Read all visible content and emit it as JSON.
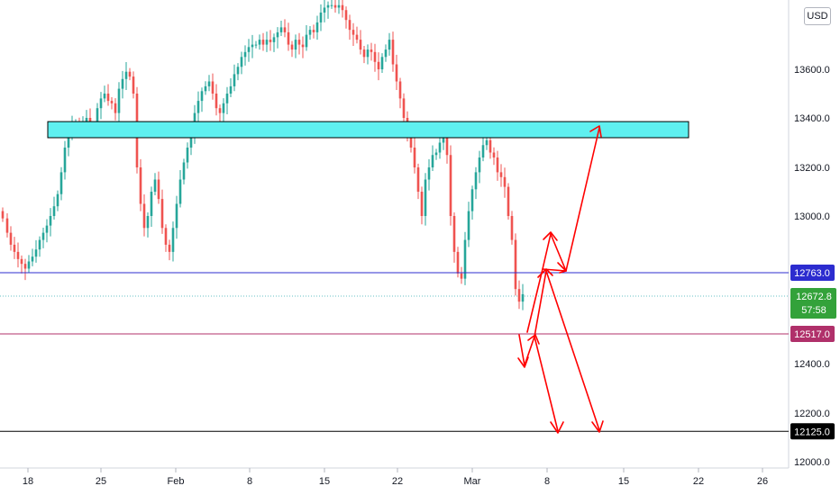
{
  "currency_label": "USD",
  "chart_data": {
    "type": "candlestick",
    "y_axis": {
      "ticks": [
        "12000.0",
        "12200.0",
        "12400.0",
        "13000.0",
        "13200.0",
        "13400.0",
        "13600.0"
      ],
      "range": [
        11980,
        13870
      ]
    },
    "x_axis": {
      "ticks": [
        "18",
        "25",
        "Feb",
        "8",
        "15",
        "22",
        "Mar",
        "8",
        "15",
        "22",
        "26"
      ]
    },
    "levels": [
      {
        "label": "12763.0",
        "value": 12763.0,
        "color": "#2c2ccf"
      },
      {
        "label": "12517.0",
        "value": 12517.0,
        "color": "#b0306a"
      },
      {
        "label": "12125.0",
        "value": 12125.0,
        "color": "#000000"
      }
    ],
    "current_price": {
      "label": "12672.8",
      "countdown": "57:58",
      "value": 12672.8,
      "color": "#33a23a"
    },
    "zone": {
      "from": 13320,
      "to": 13385,
      "color": "#5ff0f0"
    },
    "arrow_color": "#ff0000",
    "up_color": "#26a69a",
    "down_color": "#ef5350",
    "path": [
      [
        0,
        13020
      ],
      [
        6,
        12990
      ],
      [
        10,
        12930
      ],
      [
        14,
        12880
      ],
      [
        18,
        12850
      ],
      [
        22,
        12820
      ],
      [
        26,
        12800
      ],
      [
        30,
        12780
      ],
      [
        34,
        12810
      ],
      [
        38,
        12830
      ],
      [
        42,
        12860
      ],
      [
        46,
        12900
      ],
      [
        50,
        12930
      ],
      [
        54,
        12960
      ],
      [
        58,
        13000
      ],
      [
        62,
        13040
      ],
      [
        66,
        13090
      ],
      [
        70,
        13180
      ],
      [
        74,
        13280
      ],
      [
        78,
        13350
      ],
      [
        82,
        13370
      ],
      [
        86,
        13380
      ],
      [
        90,
        13360
      ],
      [
        94,
        13380
      ],
      [
        98,
        13400
      ],
      [
        102,
        13370
      ],
      [
        106,
        13360
      ],
      [
        110,
        13440
      ],
      [
        114,
        13480
      ],
      [
        118,
        13500
      ],
      [
        122,
        13470
      ],
      [
        126,
        13460
      ],
      [
        130,
        13420
      ],
      [
        134,
        13520
      ],
      [
        138,
        13560
      ],
      [
        142,
        13590
      ],
      [
        146,
        13570
      ],
      [
        150,
        13500
      ],
      [
        154,
        13200
      ],
      [
        158,
        13050
      ],
      [
        162,
        12950
      ],
      [
        166,
        13000
      ],
      [
        170,
        13100
      ],
      [
        174,
        13150
      ],
      [
        178,
        13070
      ],
      [
        182,
        12950
      ],
      [
        186,
        12880
      ],
      [
        190,
        12850
      ],
      [
        194,
        12950
      ],
      [
        198,
        13050
      ],
      [
        202,
        13150
      ],
      [
        206,
        13220
      ],
      [
        210,
        13280
      ],
      [
        214,
        13330
      ],
      [
        218,
        13420
      ],
      [
        222,
        13470
      ],
      [
        226,
        13510
      ],
      [
        230,
        13530
      ],
      [
        234,
        13550
      ],
      [
        238,
        13500
      ],
      [
        242,
        13440
      ],
      [
        246,
        13420
      ],
      [
        250,
        13460
      ],
      [
        254,
        13500
      ],
      [
        258,
        13530
      ],
      [
        262,
        13580
      ],
      [
        266,
        13610
      ],
      [
        270,
        13650
      ],
      [
        274,
        13670
      ],
      [
        278,
        13690
      ],
      [
        282,
        13700
      ],
      [
        286,
        13700
      ],
      [
        290,
        13720
      ],
      [
        294,
        13700
      ],
      [
        298,
        13720
      ],
      [
        302,
        13710
      ],
      [
        306,
        13730
      ],
      [
        310,
        13750
      ],
      [
        314,
        13770
      ],
      [
        318,
        13750
      ],
      [
        322,
        13700
      ],
      [
        326,
        13680
      ],
      [
        330,
        13720
      ],
      [
        334,
        13700
      ],
      [
        338,
        13690
      ],
      [
        342,
        13740
      ],
      [
        346,
        13760
      ],
      [
        350,
        13750
      ],
      [
        354,
        13790
      ],
      [
        358,
        13830
      ],
      [
        362,
        13850
      ],
      [
        366,
        13860
      ],
      [
        370,
        13860
      ],
      [
        374,
        13850
      ],
      [
        378,
        13860
      ],
      [
        382,
        13840
      ],
      [
        386,
        13800
      ],
      [
        390,
        13760
      ],
      [
        394,
        13740
      ],
      [
        398,
        13720
      ],
      [
        402,
        13680
      ],
      [
        406,
        13650
      ],
      [
        410,
        13680
      ],
      [
        414,
        13670
      ],
      [
        418,
        13630
      ],
      [
        422,
        13600
      ],
      [
        426,
        13650
      ],
      [
        430,
        13680
      ],
      [
        434,
        13720
      ],
      [
        438,
        13620
      ],
      [
        442,
        13550
      ],
      [
        446,
        13480
      ],
      [
        450,
        13400
      ],
      [
        454,
        13320
      ],
      [
        458,
        13280
      ],
      [
        462,
        13200
      ],
      [
        466,
        13100
      ],
      [
        470,
        13000
      ],
      [
        474,
        13150
      ],
      [
        478,
        13200
      ],
      [
        482,
        13250
      ],
      [
        486,
        13260
      ],
      [
        490,
        13300
      ],
      [
        494,
        13320
      ],
      [
        498,
        13250
      ],
      [
        502,
        13000
      ],
      [
        506,
        12850
      ],
      [
        510,
        12760
      ],
      [
        514,
        12740
      ],
      [
        518,
        12900
      ],
      [
        522,
        13020
      ],
      [
        526,
        13110
      ],
      [
        530,
        13180
      ],
      [
        534,
        13240
      ],
      [
        538,
        13290
      ],
      [
        542,
        13310
      ],
      [
        546,
        13260
      ],
      [
        550,
        13240
      ],
      [
        554,
        13180
      ],
      [
        558,
        13160
      ],
      [
        562,
        13120
      ],
      [
        566,
        13000
      ],
      [
        570,
        12900
      ],
      [
        574,
        12700
      ],
      [
        578,
        12650
      ],
      [
        582,
        12680
      ]
    ]
  }
}
